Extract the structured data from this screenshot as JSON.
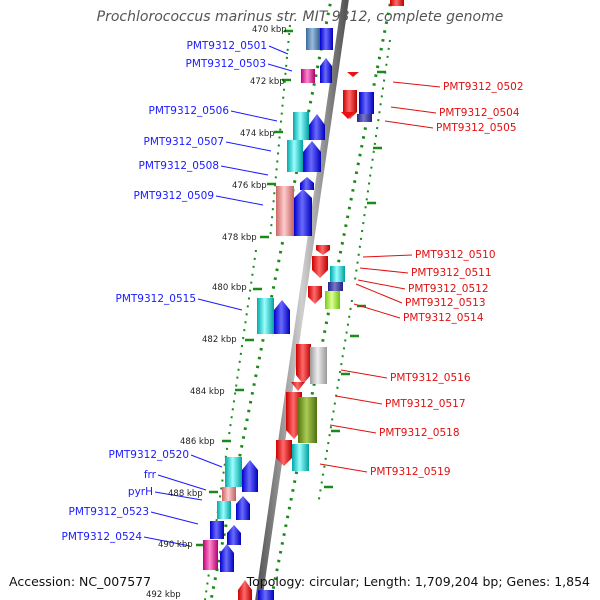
{
  "title": "Prochlorococcus marinus str. MIT 9312, complete genome",
  "footer": {
    "accession": "Accession: NC_007577",
    "summary": "Topology: circular; Length: 1,709,204 bp; Genes: 1,854"
  },
  "scale_labels": [
    "470 kbp",
    "472 kbp",
    "474 kbp",
    "476 kbp",
    "478 kbp",
    "480 kbp",
    "482 kbp",
    "484 kbp",
    "486 kbp",
    "488 kbp",
    "490 kbp",
    "492 kbp"
  ],
  "forward_gene_labels": [
    "PMT9312_0501",
    "PMT9312_0503",
    "PMT9312_0506",
    "PMT9312_0507",
    "PMT9312_0508",
    "PMT9312_0509",
    "PMT9312_0515",
    "PMT9312_0520",
    "frr",
    "pyrH",
    "PMT9312_0523",
    "PMT9312_0524"
  ],
  "reverse_gene_labels": [
    "PMT9312_0502",
    "PMT9312_0504",
    "PMT9312_0505",
    "PMT9312_0510",
    "PMT9312_0511",
    "PMT9312_0512",
    "PMT9312_0513",
    "PMT9312_0514",
    "PMT9312_0516",
    "PMT9312_0517",
    "PMT9312_0518",
    "PMT9312_0519"
  ],
  "colors": {
    "forward_label": "#1a1aff",
    "reverse_label": "#e01010",
    "backbone": "#888888",
    "ring": "#1a8a1a",
    "forward_cds": "#1010ee",
    "reverse_cds": "#ee1010",
    "cyan": "#22cccc",
    "steelblue": "#5588bb",
    "magenta": "#ee2299",
    "salmon": "#ee8888",
    "grey": "#bbbbbb",
    "olive": "#779922",
    "yellowgreen": "#99ee22",
    "indigo": "#3333aa"
  }
}
